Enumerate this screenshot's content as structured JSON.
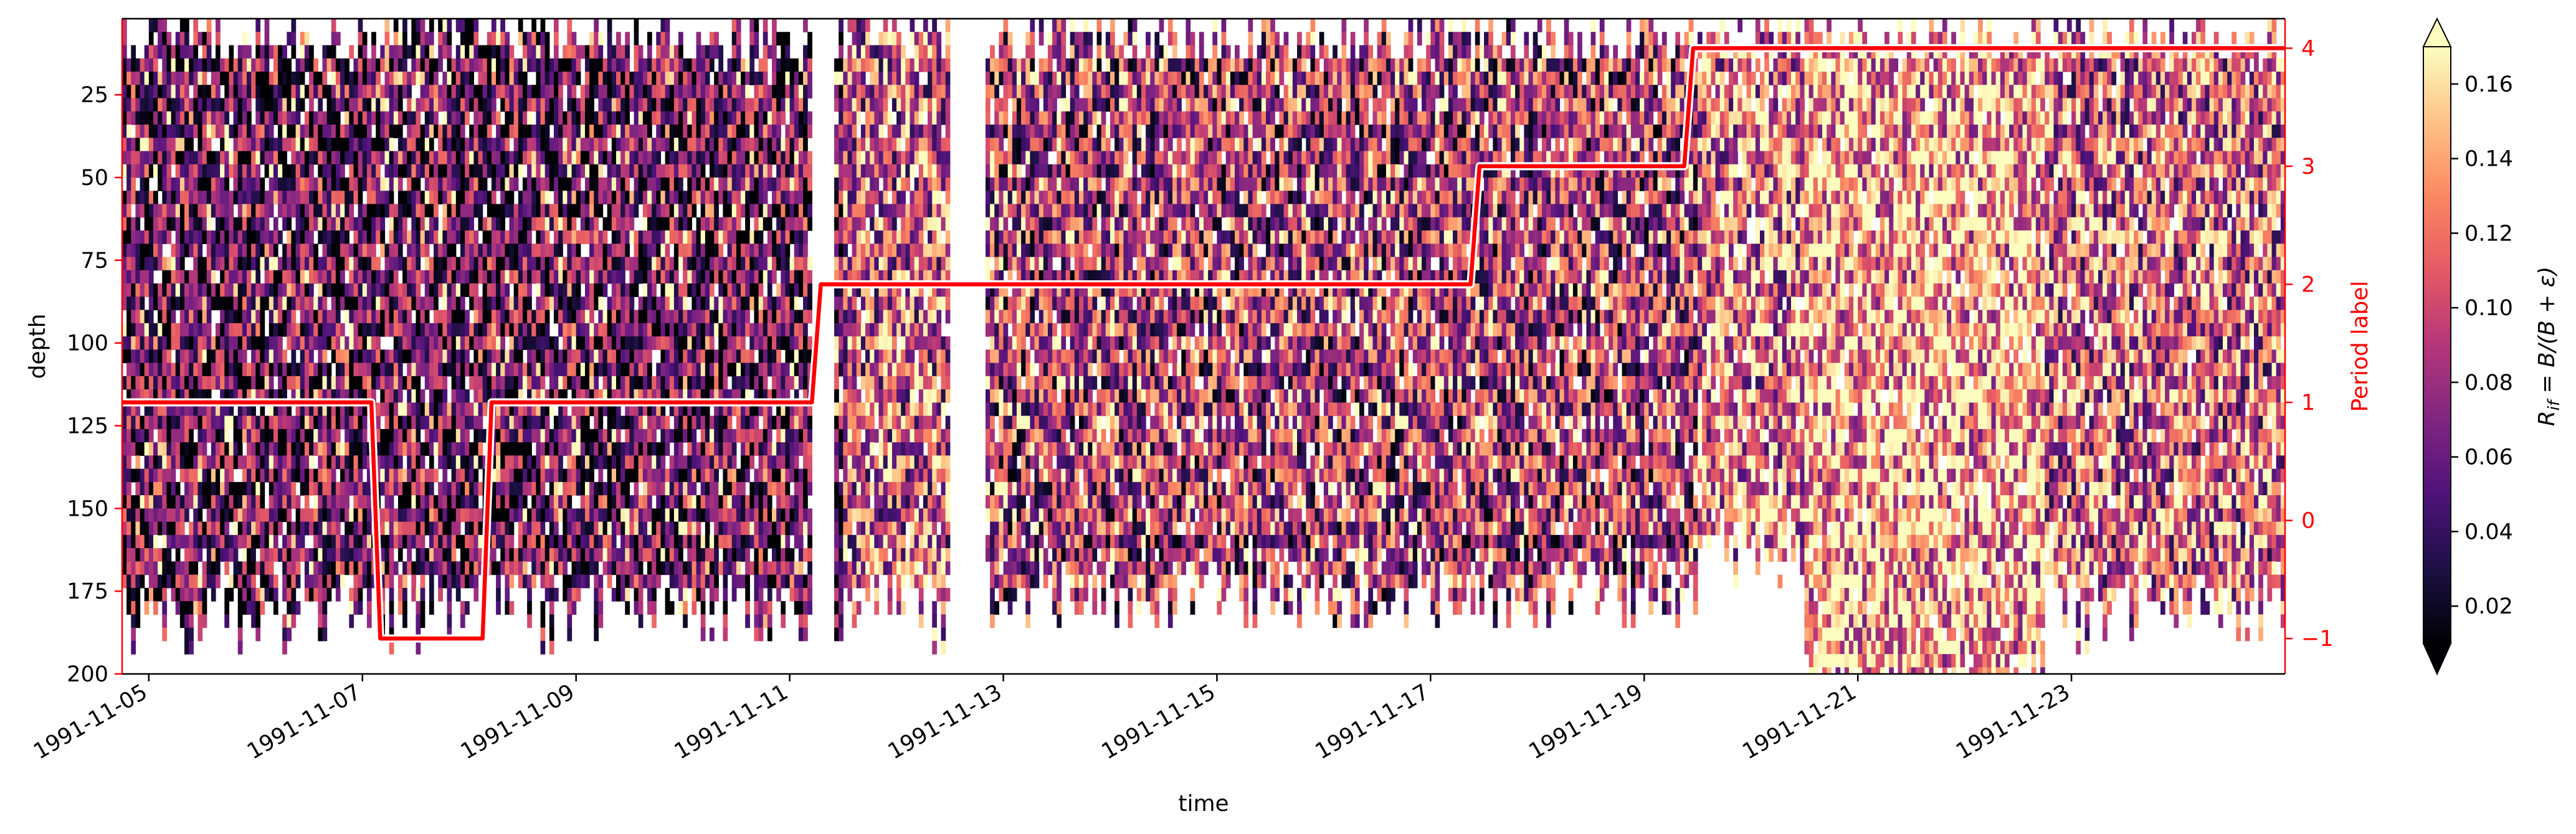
{
  "chart_data": {
    "type": "heatmap",
    "title": "",
    "xlabel": "time",
    "ylabel": "depth",
    "y2label": "Period label",
    "x_range": [
      "1991-11-04T18:00",
      "1991-11-25T00:00"
    ],
    "x_ticks": [
      "1991-11-05",
      "1991-11-07",
      "1991-11-09",
      "1991-11-11",
      "1991-11-13",
      "1991-11-15",
      "1991-11-17",
      "1991-11-19",
      "1991-11-21",
      "1991-11-23"
    ],
    "y_range": [
      200,
      2
    ],
    "y_inverted": true,
    "y_ticks": [
      25,
      50,
      75,
      100,
      125,
      150,
      175,
      200
    ],
    "y2_range": [
      -1.3,
      4.25
    ],
    "y2_ticks": [
      -1,
      0,
      1,
      2,
      3,
      4
    ],
    "colorbar": {
      "label": "Ri_f = B/(B + ε)",
      "label_parts": {
        "main": "R",
        "sub": "if",
        "rest": " = B/(B + ε)"
      },
      "range": [
        0.01,
        0.17
      ],
      "ticks": [
        0.02,
        0.04,
        0.06,
        0.08,
        0.1,
        0.12,
        0.14,
        0.16
      ],
      "tick_labels": [
        "0.02",
        "0.04",
        "0.06",
        "0.08",
        "0.10",
        "0.12",
        "0.14",
        "0.16"
      ],
      "extend": "both",
      "colormap": "magma"
    },
    "heatmap_summary": {
      "bins": "time columns of about 1 hour and depth rows of 4 (2 to 200)",
      "coverage": [
        {
          "from": "1991-11-04T18:00",
          "to": "1991-11-11T12:00",
          "max_depth": 175,
          "typical_value": 0.05
        },
        {
          "from": "1991-11-11T12:00",
          "to": "1991-11-12T12:00",
          "max_depth": 175,
          "typical_value": 0.1
        },
        {
          "from": "1991-11-12T18:00",
          "to": "1991-11-19T12:00",
          "max_depth": 170,
          "typical_value": 0.08
        },
        {
          "from": "1991-11-19T12:00",
          "to": "1991-11-20T12:00",
          "max_depth": 155,
          "typical_value": 0.11
        },
        {
          "from": "1991-11-20T12:00",
          "to": "1991-11-22T18:00",
          "max_depth": 200,
          "typical_value": 0.13
        },
        {
          "from": "1991-11-22T18:00",
          "to": "1991-11-25T00:00",
          "max_depth": 175,
          "typical_value": 0.1
        }
      ],
      "gaps": [
        {
          "from": "1991-11-11T05:00",
          "to": "1991-11-11T10:00"
        },
        {
          "from": "1991-11-12T12:00",
          "to": "1991-11-12T20:00"
        }
      ]
    },
    "series": [
      {
        "name": "Period label",
        "color": "#ff0000",
        "axis": "right",
        "points": [
          [
            "1991-11-04T18:00",
            1
          ],
          [
            "1991-11-07T02:00",
            1
          ],
          [
            "1991-11-07T04:00",
            -1
          ],
          [
            "1991-11-08T03:00",
            -1
          ],
          [
            "1991-11-08T05:00",
            1
          ],
          [
            "1991-11-11T05:00",
            1
          ],
          [
            "1991-11-11T07:00",
            2
          ],
          [
            "1991-11-17T09:00",
            2
          ],
          [
            "1991-11-17T11:00",
            3
          ],
          [
            "1991-11-19T09:00",
            3
          ],
          [
            "1991-11-19T11:00",
            4
          ],
          [
            "1991-11-25T00:00",
            4
          ]
        ]
      }
    ]
  }
}
